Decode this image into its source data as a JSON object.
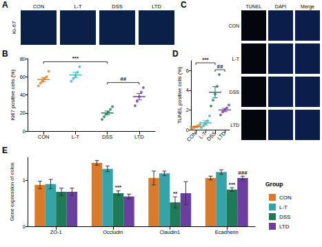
{
  "panels": {
    "A": {
      "title": "A",
      "stain": "Ki-67",
      "groups": [
        "CON",
        "L-T",
        "DSS",
        "LTD"
      ]
    },
    "C": {
      "title": "C",
      "columns": [
        "TUNEL",
        "DAPI",
        "Merge"
      ],
      "groups": [
        "CON",
        "L-T",
        "DSS",
        "LTD"
      ]
    }
  },
  "chart_data": [
    {
      "type": "scatter",
      "title": "B",
      "y_label": "Ki67 positive cells (%)",
      "categories": [
        "CON",
        "L-T",
        "DSS",
        "LTD"
      ],
      "colors": [
        "#d97b2b",
        "#3bb3c3",
        "#1f7a56",
        "#6b3fa0"
      ],
      "points": [
        [
          50,
          53,
          55,
          58,
          60,
          66
        ],
        [
          55,
          58,
          61,
          65,
          71
        ],
        [
          13,
          16,
          19,
          21,
          24,
          27
        ],
        [
          28,
          33,
          38,
          43,
          48
        ]
      ],
      "means": [
        57,
        62,
        20,
        38
      ],
      "errors": [
        2.3,
        2.8,
        2.1,
        3.5
      ],
      "ylim": [
        0,
        80
      ],
      "yticks": [
        0,
        20,
        40,
        60,
        80
      ],
      "annotations": [
        {
          "text": "***",
          "from": "CON",
          "to": "DSS"
        },
        {
          "text": "##",
          "from": "DSS",
          "to": "LTD"
        }
      ]
    },
    {
      "type": "scatter",
      "title": "D",
      "y_label": "TUNEL positive cells (%)",
      "categories": [
        "CON",
        "L-T",
        "DSS",
        "LTD"
      ],
      "colors": [
        "#d97b2b",
        "#3bb3c3",
        "#1f7a56",
        "#6b3fa0"
      ],
      "points": [
        [
          0.1,
          0.2,
          0.3,
          0.4,
          0.5
        ],
        [
          0.2,
          0.4,
          0.6,
          0.9,
          1.4
        ],
        [
          2.4,
          3.0,
          3.6,
          4.4,
          5.6
        ],
        [
          1.5,
          1.8,
          2.0,
          2.2,
          2.5
        ]
      ],
      "means": [
        0.3,
        0.7,
        3.8,
        2.0
      ],
      "errors": [
        0.07,
        0.22,
        0.56,
        0.17
      ],
      "ylim": [
        0,
        7
      ],
      "yticks": [
        0,
        2,
        4,
        6
      ],
      "annotations": [
        {
          "text": "***",
          "from": "CON",
          "to": "DSS"
        },
        {
          "text": "##",
          "from": "DSS",
          "to": "LTD"
        }
      ]
    },
    {
      "type": "bar",
      "title": "E",
      "y_label": "Gene expression of colon",
      "legend_title": "Group",
      "categories": [
        "ZO-1",
        "Occludin",
        "Claudin1",
        "Ecadherin"
      ],
      "series": [
        {
          "name": "CON",
          "color": "#d97b2b",
          "values": [
            0.9,
            1.38,
            1.05,
            1.05
          ],
          "errors": [
            0.08,
            0.05,
            0.15,
            0.04
          ]
        },
        {
          "name": "L-T",
          "color": "#36a3a8",
          "values": [
            0.92,
            1.25,
            1.15,
            1.18
          ],
          "errors": [
            0.1,
            0.06,
            0.05,
            0.05
          ]
        },
        {
          "name": "DSS",
          "color": "#1f7a56",
          "values": [
            0.75,
            0.72,
            0.52,
            0.8
          ],
          "errors": [
            0.08,
            0.05,
            0.12,
            0.04
          ]
        },
        {
          "name": "LTD",
          "color": "#6b3fa0",
          "values": [
            0.75,
            0.65,
            0.72,
            1.05
          ],
          "errors": [
            0.08,
            0.05,
            0.25,
            0.04
          ]
        }
      ],
      "ylim": [
        0,
        1.5
      ],
      "yticks": [
        0,
        1
      ],
      "legend": "right",
      "annotations": [
        {
          "text": "***",
          "category": "Occludin",
          "series": "DSS"
        },
        {
          "text": "**",
          "category": "Claudin1",
          "series": "DSS"
        },
        {
          "text": "***",
          "category": "Ecadherin",
          "series": "DSS"
        },
        {
          "text": "###",
          "category": "Ecadherin",
          "series": "LTD"
        }
      ]
    }
  ]
}
